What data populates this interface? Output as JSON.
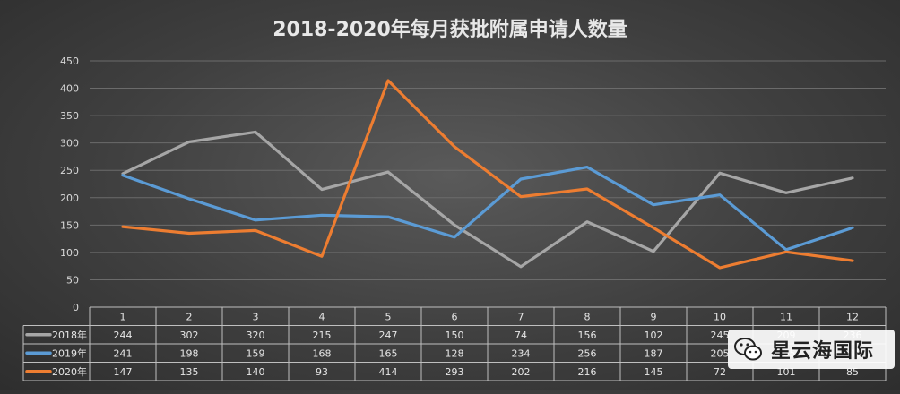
{
  "chart_data": {
    "type": "line",
    "title": "2018-2020年每月获批附属申请人数量",
    "categories": [
      "1",
      "2",
      "3",
      "4",
      "5",
      "6",
      "7",
      "8",
      "9",
      "10",
      "11",
      "12"
    ],
    "ylim": [
      0,
      450
    ],
    "yticks": [
      0,
      50,
      100,
      150,
      200,
      250,
      300,
      350,
      400,
      450
    ],
    "grid": true,
    "legend": "data-table",
    "series": [
      {
        "name": "2018年",
        "color": "#a6a6a6",
        "values": [
          244,
          302,
          320,
          215,
          247,
          150,
          74,
          156,
          102,
          245,
          209,
          236
        ]
      },
      {
        "name": "2019年",
        "color": "#5b9bd5",
        "values": [
          241,
          198,
          159,
          168,
          165,
          128,
          234,
          256,
          187,
          205,
          105,
          145
        ]
      },
      {
        "name": "2020年",
        "color": "#ed7d31",
        "values": [
          147,
          135,
          140,
          93,
          414,
          293,
          202,
          216,
          145,
          72,
          101,
          85
        ]
      }
    ]
  },
  "watermark": {
    "text": "星云海国际",
    "icon": "wechat-icon"
  }
}
